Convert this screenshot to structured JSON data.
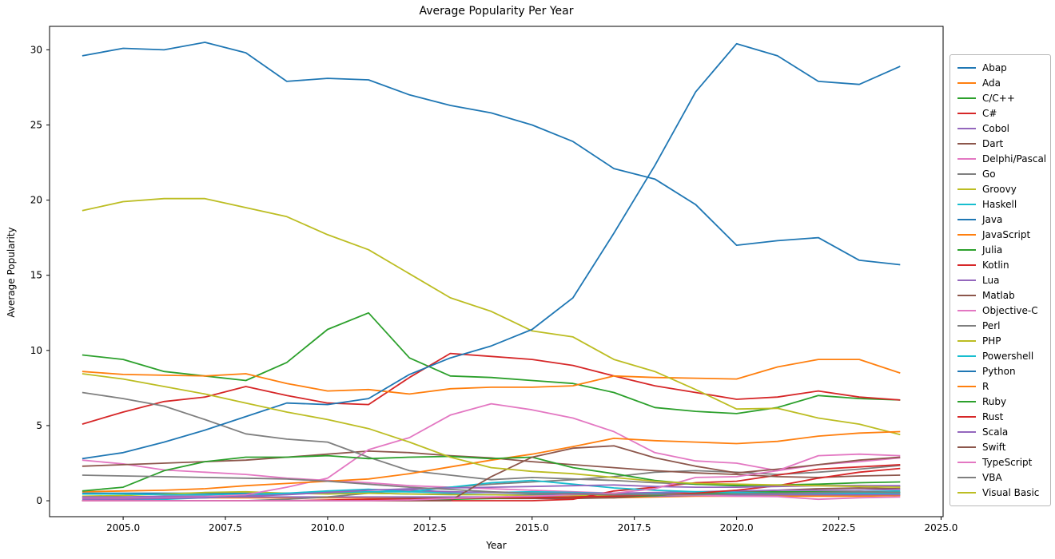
{
  "title": "Average Popularity Per Year",
  "chart_data": {
    "type": "line",
    "title": "Average Popularity Per Year",
    "xlabel": "Year",
    "ylabel": "Average Popularity",
    "x": [
      2004,
      2005,
      2006,
      2007,
      2008,
      2009,
      2010,
      2011,
      2012,
      2013,
      2014,
      2015,
      2016,
      2017,
      2018,
      2019,
      2020,
      2021,
      2022,
      2023,
      2024
    ],
    "x_tick_labels": [
      "2005.0",
      "2007.5",
      "2010.0",
      "2012.5",
      "2015.0",
      "2017.5",
      "2020.0",
      "2022.5",
      "2025.0"
    ],
    "x_tick_values": [
      2005,
      2007.5,
      2010,
      2012.5,
      2015,
      2017.5,
      2020,
      2022.5,
      2025
    ],
    "y_tick_labels": [
      "0",
      "5",
      "10",
      "15",
      "20",
      "25",
      "30"
    ],
    "y_tick_values": [
      0,
      5,
      10,
      15,
      20,
      25,
      30
    ],
    "xlim": [
      2003.2,
      2025.05
    ],
    "ylim": [
      -1.06,
      31.56
    ],
    "grid": false,
    "legend_position": "right",
    "line_width": 1.8,
    "series": [
      {
        "name": "Abap",
        "color": "#1f77b4",
        "values": [
          0.5,
          0.5,
          0.5,
          0.5,
          0.5,
          0.5,
          0.5,
          0.5,
          0.45,
          0.45,
          0.4,
          0.4,
          0.4,
          0.4,
          0.4,
          0.4,
          0.4,
          0.4,
          0.4,
          0.4,
          0.4
        ]
      },
      {
        "name": "Ada",
        "color": "#ff7f0e",
        "values": [
          0.2,
          0.2,
          0.2,
          0.2,
          0.2,
          0.2,
          0.2,
          0.2,
          0.2,
          0.2,
          0.2,
          0.2,
          0.2,
          0.2,
          0.25,
          0.3,
          0.3,
          0.3,
          0.3,
          0.3,
          0.35
        ]
      },
      {
        "name": "C/C++",
        "color": "#2ca02c",
        "values": [
          9.7,
          9.4,
          8.6,
          8.3,
          8.0,
          9.2,
          11.4,
          12.5,
          9.5,
          8.3,
          8.2,
          8.0,
          7.8,
          7.2,
          6.2,
          5.95,
          5.8,
          6.2,
          7.0,
          6.8,
          6.7
        ]
      },
      {
        "name": "C#",
        "color": "#d62728",
        "values": [
          5.1,
          5.9,
          6.6,
          6.9,
          7.6,
          7.0,
          6.5,
          6.4,
          8.2,
          9.8,
          9.6,
          9.4,
          9.0,
          8.3,
          7.65,
          7.2,
          6.75,
          6.9,
          7.3,
          6.9,
          6.7
        ]
      },
      {
        "name": "Cobol",
        "color": "#9467bd",
        "values": [
          0.25,
          0.25,
          0.25,
          0.25,
          0.25,
          0.25,
          0.25,
          0.25,
          0.25,
          0.25,
          0.25,
          0.25,
          0.25,
          0.3,
          0.3,
          0.35,
          0.4,
          0.4,
          0.4,
          0.4,
          0.4
        ]
      },
      {
        "name": "Dart",
        "color": "#8c564b",
        "values": [
          0,
          0,
          0,
          0,
          0,
          0,
          0,
          0.1,
          0.15,
          0.15,
          0.15,
          0.15,
          0.15,
          0.2,
          0.35,
          0.5,
          0.6,
          0.7,
          0.8,
          0.85,
          0.8
        ]
      },
      {
        "name": "Delphi/Pascal",
        "color": "#e377c2",
        "values": [
          2.7,
          2.45,
          2.05,
          1.9,
          1.75,
          1.5,
          1.35,
          1.2,
          1.0,
          0.9,
          0.8,
          0.7,
          0.6,
          0.5,
          0.4,
          0.35,
          0.3,
          0.28,
          0.1,
          0.2,
          0.25
        ]
      },
      {
        "name": "Go",
        "color": "#7f7f7f",
        "values": [
          0,
          0,
          0,
          0,
          0,
          0.1,
          0.25,
          0.5,
          0.75,
          0.9,
          1.1,
          1.25,
          1.4,
          1.6,
          1.9,
          2.0,
          1.9,
          1.75,
          1.9,
          2.1,
          2.35
        ]
      },
      {
        "name": "Groovy",
        "color": "#bcbd22",
        "values": [
          0.3,
          0.35,
          0.45,
          0.55,
          0.6,
          0.5,
          0.45,
          0.5,
          0.45,
          0.4,
          0.4,
          0.35,
          0.35,
          0.4,
          0.45,
          0.5,
          0.5,
          0.55,
          0.6,
          0.6,
          0.55
        ]
      },
      {
        "name": "Haskell",
        "color": "#17becf",
        "values": [
          0.45,
          0.45,
          0.4,
          0.4,
          0.45,
          0.5,
          0.55,
          0.6,
          0.6,
          0.55,
          0.55,
          0.6,
          0.55,
          0.5,
          0.5,
          0.45,
          0.45,
          0.5,
          0.55,
          0.6,
          0.65
        ]
      },
      {
        "name": "Java",
        "color": "#1f77b4",
        "values": [
          29.6,
          30.1,
          30.0,
          30.5,
          29.8,
          27.9,
          28.1,
          28.0,
          27.0,
          26.3,
          25.8,
          25.0,
          23.9,
          22.1,
          21.4,
          19.7,
          17.0,
          17.3,
          17.5,
          16.0,
          15.7
        ]
      },
      {
        "name": "JavaScript",
        "color": "#ff7f0e",
        "values": [
          8.6,
          8.4,
          8.35,
          8.3,
          8.45,
          7.8,
          7.3,
          7.4,
          7.1,
          7.45,
          7.55,
          7.55,
          7.65,
          8.3,
          8.2,
          8.15,
          8.1,
          8.9,
          9.4,
          9.4,
          8.5
        ]
      },
      {
        "name": "Julia",
        "color": "#2ca02c",
        "values": [
          0,
          0,
          0,
          0,
          0,
          0,
          0,
          0,
          0.05,
          0.1,
          0.15,
          0.2,
          0.25,
          0.3,
          0.35,
          0.5,
          0.55,
          0.6,
          0.6,
          0.6,
          0.55
        ]
      },
      {
        "name": "Kotlin",
        "color": "#d62728",
        "values": [
          0,
          0,
          0,
          0,
          0,
          0,
          0,
          0,
          0,
          0,
          0,
          0,
          0.1,
          0.65,
          0.9,
          1.2,
          1.3,
          1.7,
          2.1,
          2.25,
          2.4
        ]
      },
      {
        "name": "Lua",
        "color": "#9467bd",
        "values": [
          0.25,
          0.25,
          0.3,
          0.3,
          0.35,
          0.45,
          0.6,
          0.75,
          0.7,
          0.6,
          0.55,
          0.5,
          0.5,
          0.5,
          0.55,
          0.6,
          0.65,
          0.7,
          0.7,
          0.72,
          0.75
        ]
      },
      {
        "name": "Matlab",
        "color": "#8c564b",
        "values": [
          2.3,
          2.4,
          2.5,
          2.6,
          2.7,
          2.9,
          3.1,
          3.3,
          3.2,
          3.0,
          2.85,
          2.6,
          2.4,
          2.2,
          2.0,
          1.85,
          1.75,
          1.6,
          1.55,
          1.65,
          1.7
        ]
      },
      {
        "name": "Objective-C",
        "color": "#e377c2",
        "values": [
          0.15,
          0.15,
          0.2,
          0.25,
          0.4,
          0.9,
          1.5,
          3.4,
          4.2,
          5.7,
          6.45,
          6.05,
          5.5,
          4.6,
          3.2,
          2.65,
          2.5,
          2.0,
          2.4,
          2.6,
          2.85
        ]
      },
      {
        "name": "Perl",
        "color": "#7f7f7f",
        "values": [
          7.2,
          6.8,
          6.3,
          5.4,
          4.45,
          4.1,
          3.9,
          2.9,
          2.0,
          1.7,
          1.4,
          1.55,
          1.45,
          1.35,
          1.2,
          1.1,
          1.05,
          1.0,
          1.0,
          1.0,
          0.95
        ]
      },
      {
        "name": "PHP",
        "color": "#bcbd22",
        "values": [
          19.3,
          19.9,
          20.1,
          20.1,
          19.5,
          18.9,
          17.7,
          16.7,
          15.1,
          13.5,
          12.6,
          11.3,
          10.9,
          9.4,
          8.6,
          7.4,
          6.1,
          6.15,
          5.5,
          5.1,
          4.4
        ]
      },
      {
        "name": "Powershell",
        "color": "#17becf",
        "values": [
          0.02,
          0.05,
          0.1,
          0.2,
          0.3,
          0.5,
          0.65,
          0.76,
          0.6,
          0.9,
          1.2,
          1.35,
          1.1,
          0.85,
          0.7,
          0.6,
          0.55,
          0.5,
          0.5,
          0.5,
          0.5
        ]
      },
      {
        "name": "Python",
        "color": "#1f77b4",
        "values": [
          2.8,
          3.2,
          3.9,
          4.7,
          5.6,
          6.5,
          6.4,
          6.8,
          8.4,
          9.5,
          10.3,
          11.4,
          13.5,
          17.8,
          22.3,
          27.2,
          30.4,
          29.6,
          27.9,
          27.7,
          28.9
        ]
      },
      {
        "name": "R",
        "color": "#ff7f0e",
        "values": [
          0.6,
          0.65,
          0.7,
          0.8,
          1.0,
          1.15,
          1.3,
          1.45,
          1.8,
          2.25,
          2.7,
          3.1,
          3.6,
          4.15,
          4.0,
          3.9,
          3.8,
          3.95,
          4.3,
          4.5,
          4.6
        ]
      },
      {
        "name": "Ruby",
        "color": "#2ca02c",
        "values": [
          0.65,
          0.9,
          2.0,
          2.6,
          2.9,
          2.9,
          3.0,
          2.8,
          2.9,
          2.95,
          2.8,
          2.9,
          2.2,
          1.8,
          1.35,
          1.1,
          1.0,
          1.05,
          1.1,
          1.2,
          1.25
        ]
      },
      {
        "name": "Rust",
        "color": "#d62728",
        "values": [
          0,
          0,
          0,
          0,
          0,
          0,
          0.05,
          0.1,
          0.1,
          0.15,
          0.2,
          0.2,
          0.25,
          0.3,
          0.4,
          0.5,
          0.7,
          1.0,
          1.5,
          1.9,
          2.15
        ]
      },
      {
        "name": "Scala",
        "color": "#9467bd",
        "values": [
          0.1,
          0.1,
          0.15,
          0.2,
          0.3,
          0.4,
          0.55,
          0.7,
          0.8,
          0.85,
          0.9,
          0.95,
          1.0,
          1.05,
          0.95,
          0.9,
          0.9,
          0.95,
          1.0,
          1.0,
          1.0
        ]
      },
      {
        "name": "Swift",
        "color": "#8c564b",
        "values": [
          0,
          0,
          0,
          0,
          0,
          0,
          0,
          0,
          0,
          0,
          1.6,
          2.9,
          3.5,
          3.65,
          2.86,
          2.3,
          1.85,
          2.1,
          2.4,
          2.7,
          2.9
        ]
      },
      {
        "name": "TypeScript",
        "color": "#e377c2",
        "values": [
          0,
          0,
          0,
          0,
          0,
          0,
          0,
          0,
          0.05,
          0.15,
          0.25,
          0.3,
          0.4,
          0.5,
          0.8,
          1.55,
          1.6,
          2.0,
          3.0,
          3.1,
          3.0
        ]
      },
      {
        "name": "VBA",
        "color": "#7f7f7f",
        "values": [
          1.7,
          1.65,
          1.6,
          1.55,
          1.5,
          1.45,
          1.3,
          1.1,
          0.9,
          0.75,
          0.6,
          0.5,
          0.45,
          0.4,
          0.4,
          0.4,
          0.45,
          0.5,
          0.55,
          0.6,
          0.55
        ]
      },
      {
        "name": "Visual Basic",
        "color": "#bcbd22",
        "values": [
          8.45,
          8.1,
          7.6,
          7.1,
          6.5,
          5.9,
          5.4,
          4.8,
          3.9,
          2.9,
          2.2,
          1.95,
          1.8,
          1.55,
          1.3,
          1.15,
          1.1,
          1.05,
          1.0,
          0.95,
          0.9
        ]
      }
    ]
  }
}
